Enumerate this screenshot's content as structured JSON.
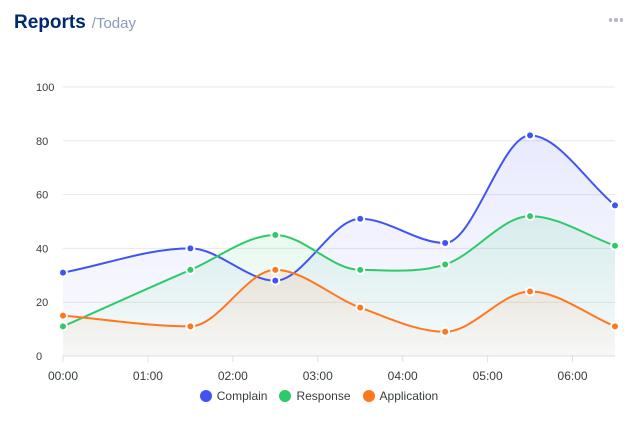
{
  "header": {
    "title": "Reports",
    "subtitle": "/Today"
  },
  "menu": {
    "icon": "more-dots-icon"
  },
  "colors": {
    "complain": "#4154f1",
    "response": "#2eca6a",
    "application": "#ff771d"
  },
  "chart_data": {
    "type": "area",
    "x_ticks": [
      "00:00",
      "01:00",
      "02:00",
      "03:00",
      "04:00",
      "05:00",
      "06:00"
    ],
    "y_ticks": [
      "0",
      "20",
      "40",
      "60",
      "80",
      "100"
    ],
    "ylim": [
      0,
      100
    ],
    "x_hours": [
      0.0,
      1.5,
      2.5,
      3.5,
      4.5,
      5.5,
      6.5
    ],
    "grid": true,
    "legend_position": "bottom",
    "series": [
      {
        "name": "Complain",
        "values": [
          31,
          40,
          28,
          51,
          42,
          82,
          56
        ]
      },
      {
        "name": "Response",
        "values": [
          11,
          32,
          45,
          32,
          34,
          52,
          41
        ]
      },
      {
        "name": "Application",
        "values": [
          15,
          11,
          32,
          18,
          9,
          24,
          11
        ]
      }
    ]
  }
}
